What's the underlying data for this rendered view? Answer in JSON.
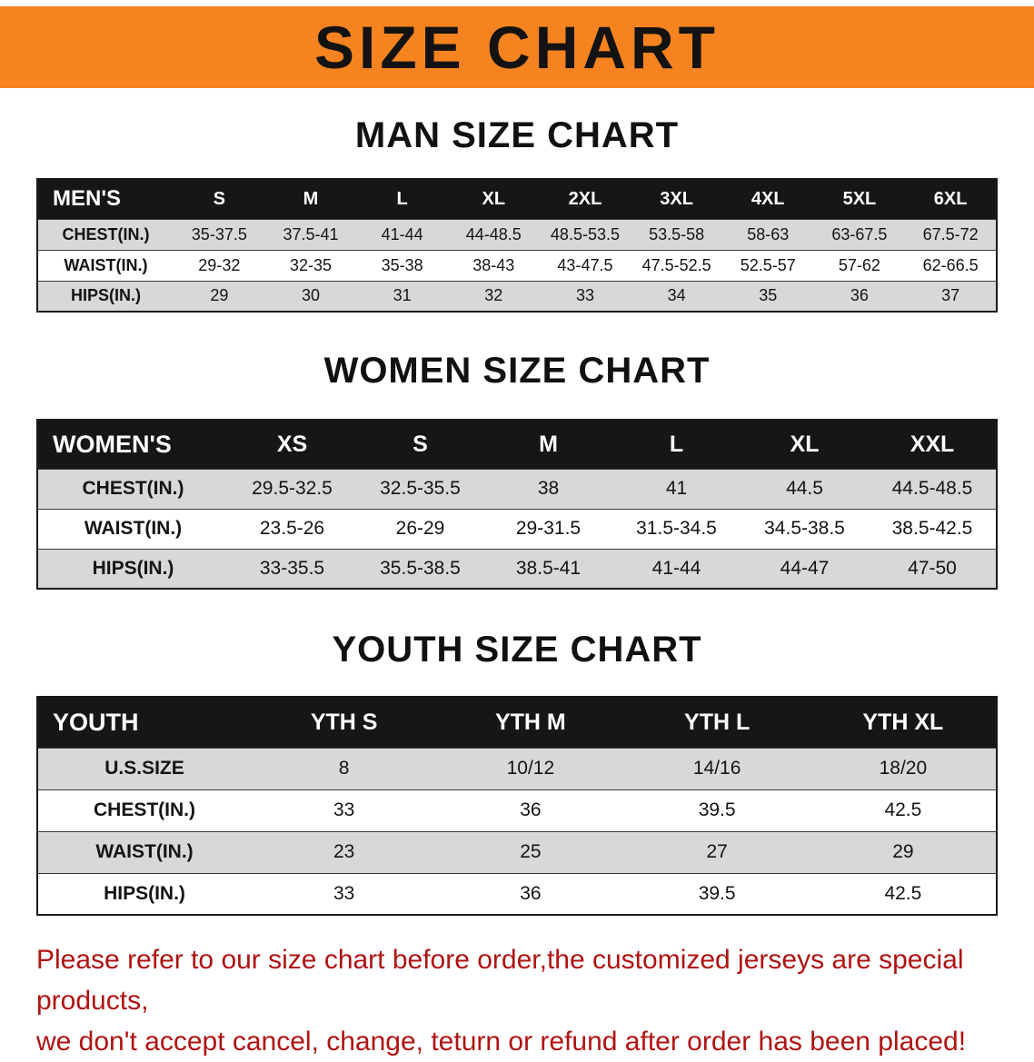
{
  "banner": {
    "title": "SIZE CHART"
  },
  "sections": {
    "men": {
      "heading": "MAN SIZE CHART"
    },
    "women": {
      "heading": "WOMEN SIZE CHART"
    },
    "youth": {
      "heading": "YOUTH SIZE CHART"
    }
  },
  "tables": {
    "men": {
      "header": [
        "MEN'S",
        "S",
        "M",
        "L",
        "XL",
        "2XL",
        "3XL",
        "4XL",
        "5XL",
        "6XL"
      ],
      "rows": [
        [
          "CHEST(IN.)",
          "35-37.5",
          "37.5-41",
          "41-44",
          "44-48.5",
          "48.5-53.5",
          "53.5-58",
          "58-63",
          "63-67.5",
          "67.5-72"
        ],
        [
          "WAIST(IN.)",
          "29-32",
          "32-35",
          "35-38",
          "38-43",
          "43-47.5",
          "47.5-52.5",
          "52.5-57",
          "57-62",
          "62-66.5"
        ],
        [
          "HIPS(IN.)",
          "29",
          "30",
          "31",
          "32",
          "33",
          "34",
          "35",
          "36",
          "37"
        ]
      ]
    },
    "women": {
      "header": [
        "WOMEN'S",
        "XS",
        "S",
        "M",
        "L",
        "XL",
        "XXL"
      ],
      "rows": [
        [
          "CHEST(IN.)",
          "29.5-32.5",
          "32.5-35.5",
          "38",
          "41",
          "44.5",
          "44.5-48.5"
        ],
        [
          "WAIST(IN.)",
          "23.5-26",
          "26-29",
          "29-31.5",
          "31.5-34.5",
          "34.5-38.5",
          "38.5-42.5"
        ],
        [
          "HIPS(IN.)",
          "33-35.5",
          "35.5-38.5",
          "38.5-41",
          "41-44",
          "44-47",
          "47-50"
        ]
      ]
    },
    "youth": {
      "header": [
        "YOUTH",
        "YTH S",
        "YTH M",
        "YTH L",
        "YTH XL"
      ],
      "rows": [
        [
          "U.S.SIZE",
          "8",
          "10/12",
          "14/16",
          "18/20"
        ],
        [
          "CHEST(IN.)",
          "33",
          "36",
          "39.5",
          "42.5"
        ],
        [
          "WAIST(IN.)",
          "23",
          "25",
          "27",
          "29"
        ],
        [
          "HIPS(IN.)",
          "33",
          "36",
          "39.5",
          "42.5"
        ]
      ]
    }
  },
  "disclaimer": {
    "line1": "Please refer to our size chart before order,the customized jerseys are special products,",
    "line2": "we don't accept cancel, change, teturn or refund after order has been placed!"
  },
  "colors": {
    "banner_orange": "#F6831F",
    "table_header_black": "#161616",
    "row_gray": "#D8D8D8",
    "disclaimer_red": "#B01312"
  }
}
